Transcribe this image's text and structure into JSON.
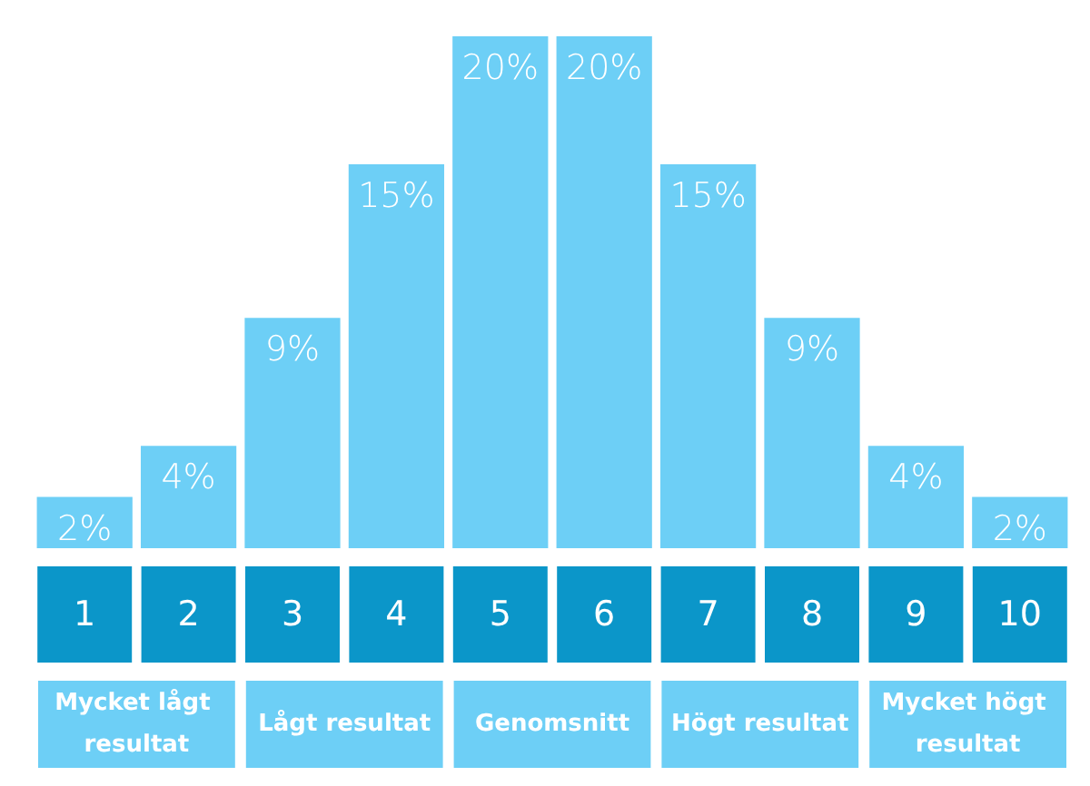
{
  "chart_data": {
    "type": "bar",
    "categories": [
      "1",
      "2",
      "3",
      "4",
      "5",
      "6",
      "7",
      "8",
      "9",
      "10"
    ],
    "values": [
      2,
      4,
      9,
      15,
      20,
      20,
      15,
      9,
      4,
      2
    ],
    "value_labels": [
      "2%",
      "4%",
      "9%",
      "15%",
      "20%",
      "20%",
      "15%",
      "9%",
      "4%",
      "2%"
    ],
    "color": "#6dcff6",
    "annotations": [
      "Mycket lågt resultat",
      "Lågt resultat",
      "Genomsnitt",
      "Högt resultat",
      "Mycket högt resultat"
    ],
    "tick_labels": "x"
  }
}
